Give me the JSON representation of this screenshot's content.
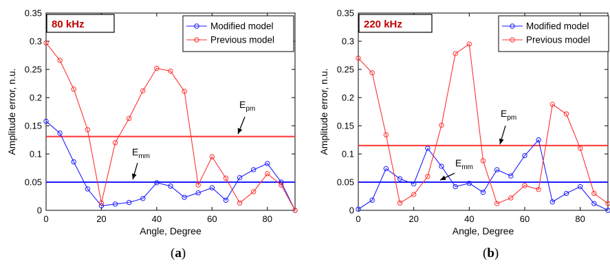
{
  "chart_data": [
    {
      "type": "line",
      "title": "80 kHz",
      "xlabel": "Angle, Degree",
      "ylabel": "Amplitude error, n.u.",
      "xlim": [
        0,
        90
      ],
      "ylim": [
        0,
        0.35
      ],
      "xticks": [
        "0",
        "20",
        "40",
        "60",
        "80"
      ],
      "yticks": [
        "0",
        "0.05",
        "0.1",
        "0.15",
        "0.2",
        "0.25",
        "0.3",
        "0.35"
      ],
      "legend_position": "top-right",
      "grid": false,
      "x": [
        0,
        5,
        10,
        15,
        20,
        25,
        30,
        35,
        40,
        45,
        50,
        55,
        60,
        65,
        70,
        75,
        80,
        85,
        90
      ],
      "series": [
        {
          "name": "Modified model",
          "color": "#1a1aff",
          "values": [
            0.158,
            0.137,
            0.086,
            0.038,
            0.008,
            0.011,
            0.014,
            0.021,
            0.049,
            0.043,
            0.023,
            0.031,
            0.04,
            0.018,
            0.058,
            0.072,
            0.083,
            0.05,
            0.0
          ]
        },
        {
          "name": "Previous model",
          "color": "#ff3030",
          "values": [
            0.297,
            0.266,
            0.215,
            0.143,
            0.013,
            0.12,
            0.163,
            0.212,
            0.252,
            0.247,
            0.211,
            0.045,
            0.095,
            0.057,
            0.013,
            0.033,
            0.065,
            0.045,
            0.0
          ]
        }
      ],
      "hlines": [
        {
          "label": "E",
          "sub": "pm",
          "value": 0.131,
          "color": "#ff3030"
        },
        {
          "label": "E",
          "sub": "mm",
          "value": 0.05,
          "color": "#1a1aff"
        }
      ],
      "caption_letter": "a"
    },
    {
      "type": "line",
      "title": "220 kHz",
      "xlabel": "Angle, Degree",
      "ylabel": "Amplitude error, n.u.",
      "xlim": [
        0,
        90
      ],
      "ylim": [
        0,
        0.35
      ],
      "xticks": [
        "0",
        "20",
        "40",
        "60",
        "80"
      ],
      "yticks": [
        "0",
        "0.05",
        "0.1",
        "0.15",
        "0.2",
        "0.25",
        "0.3",
        "0.35"
      ],
      "legend_position": "top-right",
      "grid": false,
      "x": [
        0,
        5,
        10,
        15,
        20,
        25,
        30,
        35,
        40,
        45,
        50,
        55,
        60,
        65,
        70,
        75,
        80,
        85,
        90
      ],
      "series": [
        {
          "name": "Modified model",
          "color": "#1a1aff",
          "values": [
            0.002,
            0.018,
            0.074,
            0.056,
            0.047,
            0.11,
            0.078,
            0.042,
            0.048,
            0.032,
            0.072,
            0.061,
            0.097,
            0.125,
            0.015,
            0.03,
            0.042,
            0.012,
            0.0
          ]
        },
        {
          "name": "Previous model",
          "color": "#ff3030",
          "values": [
            0.27,
            0.244,
            0.134,
            0.013,
            0.028,
            0.06,
            0.151,
            0.278,
            0.295,
            0.088,
            0.012,
            0.022,
            0.044,
            0.037,
            0.188,
            0.171,
            0.11,
            0.03,
            0.012
          ]
        }
      ],
      "hlines": [
        {
          "label": "E",
          "sub": "pm",
          "value": 0.115,
          "color": "#ff3030"
        },
        {
          "label": "E",
          "sub": "mm",
          "value": 0.05,
          "color": "#1a1aff"
        }
      ],
      "caption_letter": "b"
    }
  ]
}
